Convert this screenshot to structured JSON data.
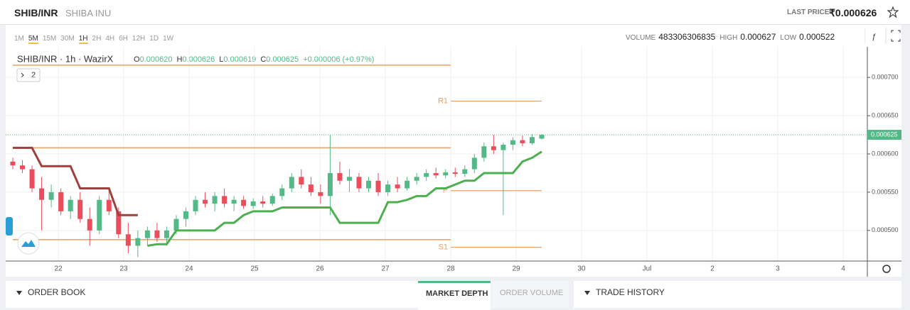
{
  "header": {
    "pair": "SHIB/INR",
    "name": "SHIBA INU",
    "last_price_label": "LAST PRICE",
    "last_price": "₹0.000626"
  },
  "toolbar": {
    "intervals": [
      "1M",
      "5M",
      "15M",
      "30M",
      "1H",
      "2H",
      "4H",
      "6H",
      "12H",
      "1D",
      "1W"
    ],
    "stats": [
      {
        "label": "VOLUME",
        "value": "483306306835"
      },
      {
        "label": "HIGH",
        "value": "0.000627"
      },
      {
        "label": "LOW",
        "value": "0.000522"
      }
    ]
  },
  "chart_data": {
    "type": "candlestick",
    "title": "SHIB/INR · 1h · WazirX",
    "legend": [
      {
        "label": "O",
        "value": "0.000620"
      },
      {
        "label": "H",
        "value": "0.000626"
      },
      {
        "label": "L",
        "value": "0.000619"
      },
      {
        "label": "C",
        "value": "0.000625"
      }
    ],
    "change": "+0.000006 (+0.97%)",
    "indicator_count": "2",
    "candles": {
      "open": [
        0.00059,
        0.000585,
        0.00058,
        0.000555,
        0.00054,
        0.00055,
        0.000525,
        0.00054,
        0.000515,
        0.0005,
        0.00054,
        0.000525,
        0.000495,
        0.00048,
        0.00049,
        0.0005,
        0.00049,
        0.0005,
        0.000515,
        0.000525,
        0.00054,
        0.000535,
        0.000545,
        0.000535,
        0.00054,
        0.000532,
        0.000538,
        0.000535,
        0.000545,
        0.000555,
        0.00057,
        0.00056,
        0.00055,
        0.000545,
        0.000575,
        0.000565,
        0.00057,
        0.000555,
        0.000565,
        0.00055,
        0.00056,
        0.000555,
        0.000565,
        0.00057,
        0.000575,
        0.000572,
        0.000576,
        0.000574,
        0.00058,
        0.000595,
        0.00061,
        0.000605,
        0.000612,
        0.000618,
        0.000614,
        0.00062
      ],
      "high": [
        0.000595,
        0.000592,
        0.000585,
        0.00057,
        0.00056,
        0.000555,
        0.000545,
        0.00055,
        0.00053,
        0.000545,
        0.000555,
        0.00053,
        0.00051,
        0.0005,
        0.000505,
        0.00051,
        0.000505,
        0.00052,
        0.00053,
        0.000545,
        0.00055,
        0.00055,
        0.000555,
        0.000545,
        0.000545,
        0.000542,
        0.000545,
        0.000548,
        0.00056,
        0.000575,
        0.00058,
        0.00057,
        0.00056,
        0.000625,
        0.00059,
        0.00058,
        0.000575,
        0.00057,
        0.000575,
        0.000565,
        0.00057,
        0.00057,
        0.000575,
        0.00058,
        0.000582,
        0.00058,
        0.000582,
        0.000585,
        0.0006,
        0.000615,
        0.000625,
        0.000615,
        0.000622,
        0.000624,
        0.000626,
        0.000626
      ],
      "low": [
        0.00058,
        0.000575,
        0.00055,
        0.0005,
        0.00053,
        0.00052,
        0.000515,
        0.00051,
        0.00048,
        0.000495,
        0.00052,
        0.00049,
        0.00047,
        0.000465,
        0.00048,
        0.000485,
        0.00048,
        0.000495,
        0.000505,
        0.00052,
        0.00053,
        0.000525,
        0.00053,
        0.000525,
        0.000528,
        0.000528,
        0.00053,
        0.000532,
        0.00054,
        0.00055,
        0.000555,
        0.000545,
        0.000535,
        0.00052,
        0.00056,
        0.00055,
        0.00055,
        0.00055,
        0.000545,
        0.000545,
        0.00055,
        0.000552,
        0.00056,
        0.000565,
        0.000568,
        0.000568,
        0.00057,
        0.00057,
        0.000575,
        0.00059,
        0.0006,
        0.00052,
        0.000605,
        0.00061,
        0.000612,
        0.000619
      ],
      "close": [
        0.000585,
        0.00058,
        0.000555,
        0.00054,
        0.00055,
        0.000525,
        0.00054,
        0.000515,
        0.0005,
        0.00054,
        0.000525,
        0.000495,
        0.00048,
        0.00049,
        0.0005,
        0.00049,
        0.0005,
        0.000515,
        0.000525,
        0.00054,
        0.000535,
        0.000545,
        0.000535,
        0.00054,
        0.000532,
        0.000538,
        0.000535,
        0.000545,
        0.000555,
        0.00057,
        0.00056,
        0.00055,
        0.000545,
        0.000575,
        0.000565,
        0.00057,
        0.000555,
        0.000565,
        0.00055,
        0.00056,
        0.000555,
        0.000565,
        0.00057,
        0.000575,
        0.000572,
        0.000576,
        0.000574,
        0.00058,
        0.000595,
        0.00061,
        0.000605,
        0.000612,
        0.000618,
        0.000614,
        0.000622,
        0.000625
      ]
    },
    "up_color": "#53b987",
    "down_color": "#eb4d5c",
    "supertrend": {
      "down_color": "#a0403c",
      "up_color": "#4caf50",
      "down": [
        0.000608,
        0.000608,
        0.000608,
        0.000584,
        0.000584,
        0.000584,
        0.000584,
        0.000555,
        0.000555,
        0.000555,
        0.000555,
        0.00052,
        0.00052,
        0.00052,
        null,
        null,
        null,
        null,
        null,
        null,
        null,
        null,
        null,
        null,
        null,
        null,
        null,
        null,
        null,
        null,
        null,
        null,
        null,
        null,
        null,
        null,
        null,
        null,
        null,
        null,
        null,
        null,
        null,
        null,
        null,
        null,
        null,
        null,
        null,
        null,
        null,
        null,
        null,
        null,
        null,
        null
      ],
      "up": [
        null,
        null,
        null,
        null,
        null,
        null,
        null,
        null,
        null,
        null,
        null,
        null,
        null,
        null,
        0.00048,
        0.000482,
        0.000482,
        0.0005,
        0.0005,
        0.0005,
        0.0005,
        0.0005,
        0.00051,
        0.00051,
        0.00052,
        0.000525,
        0.000525,
        0.000525,
        0.00053,
        0.00053,
        0.00053,
        0.00053,
        0.00053,
        0.00053,
        0.00051,
        0.00051,
        0.00051,
        0.00051,
        0.00051,
        0.000537,
        0.000537,
        0.00054,
        0.000545,
        0.000545,
        0.000555,
        0.000555,
        0.00056,
        0.000565,
        0.000565,
        0.000575,
        0.000575,
        0.000575,
        0.000575,
        0.00059,
        0.000595,
        0.000603
      ]
    },
    "pivot_color": "#e8a060",
    "pivots_previous": [
      0.000716,
      0.000608,
      0.000488
    ],
    "pivots_current": [
      {
        "label": "R1",
        "value": 0.000669
      },
      {
        "label": "P",
        "value": 0.000552
      },
      {
        "label": "S1",
        "value": 0.000478
      }
    ],
    "last_price": {
      "value": 0.000625,
      "label": "0.000625"
    },
    "last_price_color": "#53b987",
    "xticks": [
      "22",
      "23",
      "24",
      "25",
      "26",
      "27",
      "28",
      "29",
      "30",
      "Jul",
      "2",
      "3",
      "4"
    ],
    "ylim": [
      0.00046,
      0.00074
    ],
    "yticks": [
      {
        "value": 0.0005,
        "label": "0.000500"
      },
      {
        "value": 0.00055,
        "label": "0.000550"
      },
      {
        "value": 0.0006,
        "label": "0.000600"
      },
      {
        "value": 0.00065,
        "label": "0.000650"
      },
      {
        "value": 0.0007,
        "label": "0.000700"
      }
    ]
  },
  "panels": {
    "order_book": "ORDER BOOK",
    "tabs": [
      "MARKET DEPTH",
      "ORDER VOLUME"
    ],
    "trade_history": "TRADE HISTORY"
  }
}
